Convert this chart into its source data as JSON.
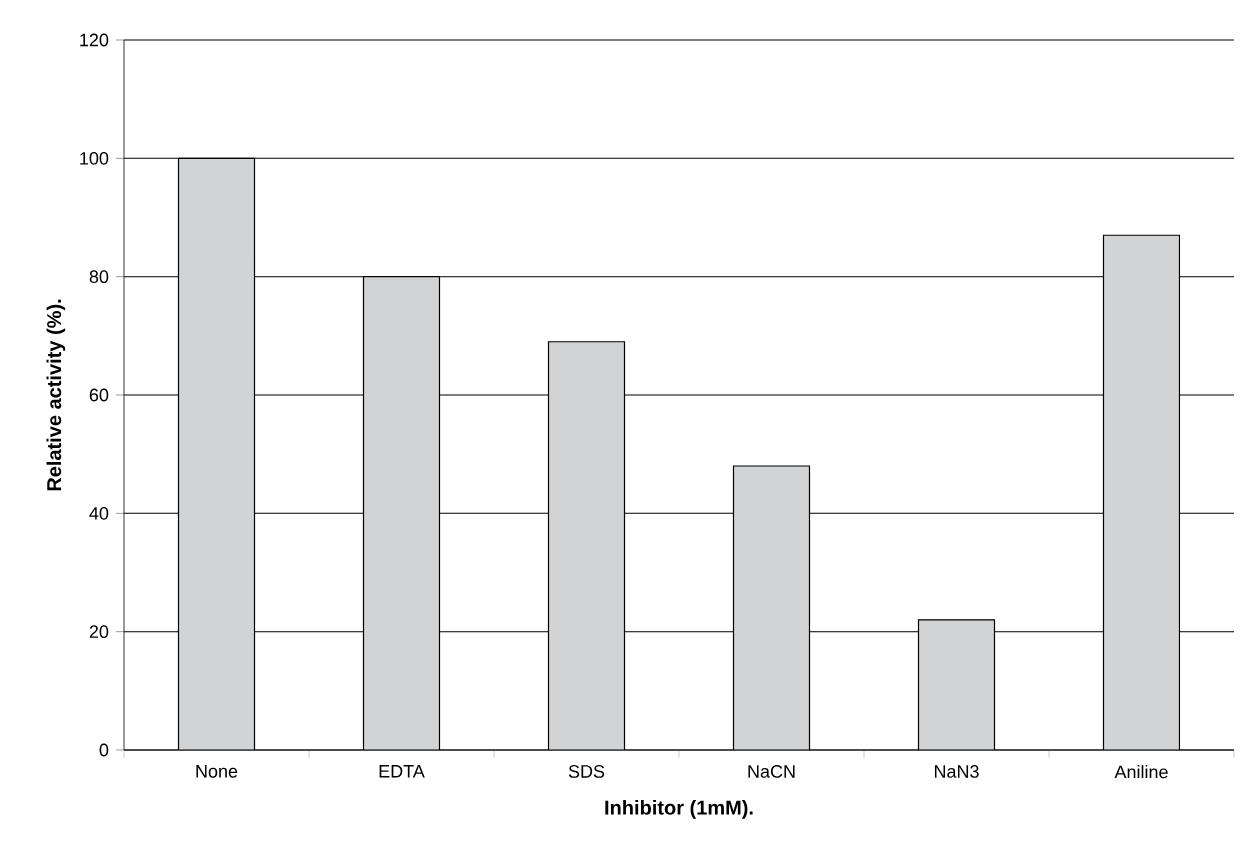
{
  "chart_data": {
    "type": "bar",
    "xlabel": "Inhibitor (1mM).",
    "ylabel": "Relative activity (%).",
    "categories": [
      "None",
      "EDTA",
      "SDS",
      "NaCN",
      "NaN3",
      "Aniline"
    ],
    "values": [
      100,
      80,
      69,
      48,
      22,
      87
    ],
    "color": "#d1d3d4",
    "ylim": [
      0,
      120
    ],
    "yticks": [
      0,
      20,
      40,
      60,
      80,
      100,
      120
    ],
    "grid": "y"
  }
}
